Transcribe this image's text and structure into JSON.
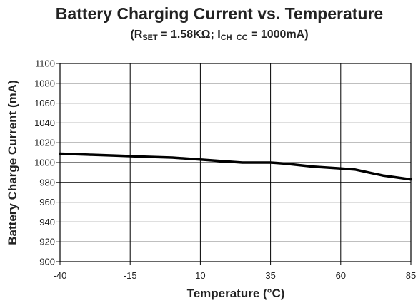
{
  "chart_data": {
    "type": "line",
    "title": "Battery Charging Current vs. Temperature",
    "subtitle": {
      "open": "(R",
      "r_sub": "SET",
      "middle": " = 1.58KΩ; I",
      "i_sub": "CH_CC",
      "close": " = 1000mA)"
    },
    "xlabel": "Temperature (°C)",
    "ylabel": "Battery Charge Current (mA)",
    "xlim": [
      -40,
      85
    ],
    "ylim": [
      900,
      1100
    ],
    "x_ticks": [
      -40,
      -15,
      10,
      35,
      60,
      85
    ],
    "y_ticks": [
      900,
      920,
      940,
      960,
      980,
      1000,
      1020,
      1040,
      1060,
      1080,
      1100
    ],
    "grid": true,
    "series": [
      {
        "x": [
          -40,
          -30,
          -20,
          -10,
          0,
          10,
          20,
          25,
          30,
          35,
          40,
          50,
          60,
          65,
          70,
          75,
          80,
          85
        ],
        "y": [
          1009,
          1008,
          1007,
          1006,
          1005,
          1003,
          1001,
          1000,
          1000,
          1000,
          999,
          996,
          994,
          993,
          990,
          987,
          985,
          983
        ]
      }
    ]
  }
}
